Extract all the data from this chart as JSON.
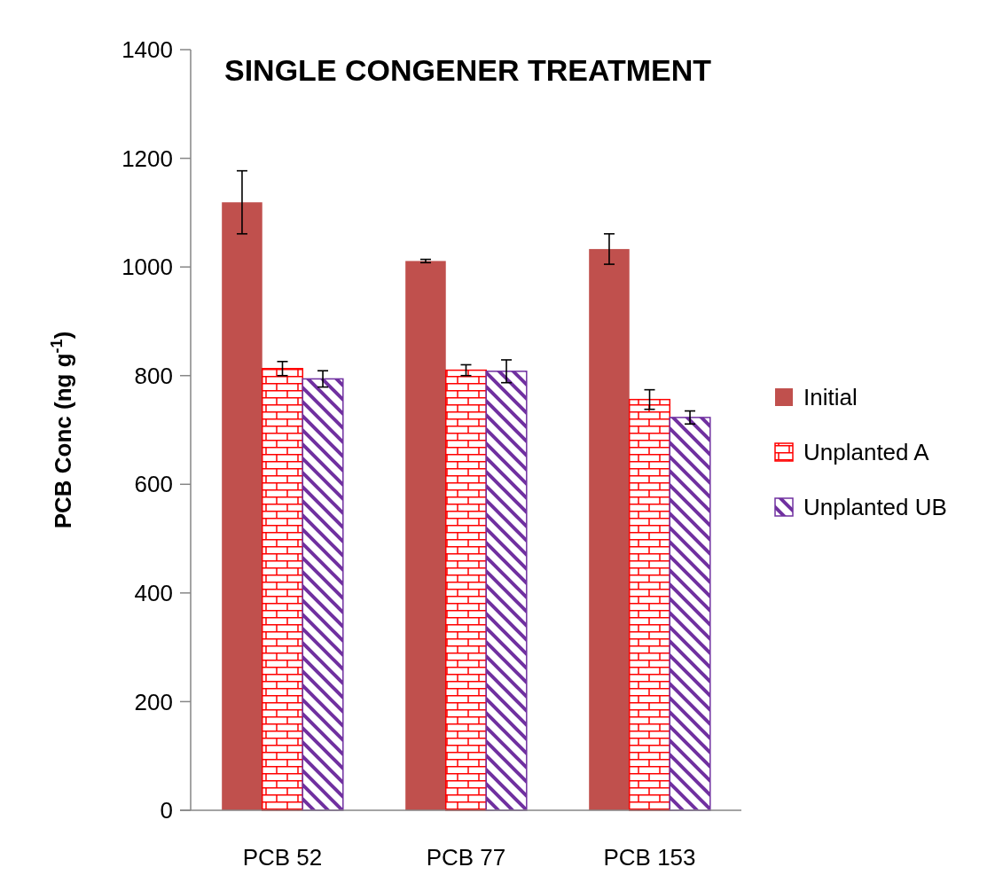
{
  "chart_data": {
    "type": "bar",
    "title": "SINGLE CONGENER TREATMENT",
    "ylabel": "PCB Conc (ng g$^{-1}$)",
    "categories": [
      "PCB 52",
      "PCB 77",
      "PCB 153"
    ],
    "series": [
      {
        "name": "Initial",
        "color": "#c0504d",
        "values": [
          1119,
          1011,
          1033
        ],
        "errors": [
          58,
          3,
          28
        ]
      },
      {
        "name": "Unplanted A",
        "color": "#ff0000",
        "values": [
          813,
          810,
          756
        ],
        "errors": [
          13,
          10,
          18
        ]
      },
      {
        "name": "Unplanted UB",
        "color": "#7030a0",
        "values": [
          794,
          808,
          723
        ],
        "errors": [
          15,
          21,
          12
        ]
      }
    ],
    "ylim": [
      0,
      1400
    ],
    "yticks": [
      0,
      200,
      400,
      600,
      800,
      1000,
      1200,
      1400
    ],
    "grid": false,
    "legend": "right"
  }
}
